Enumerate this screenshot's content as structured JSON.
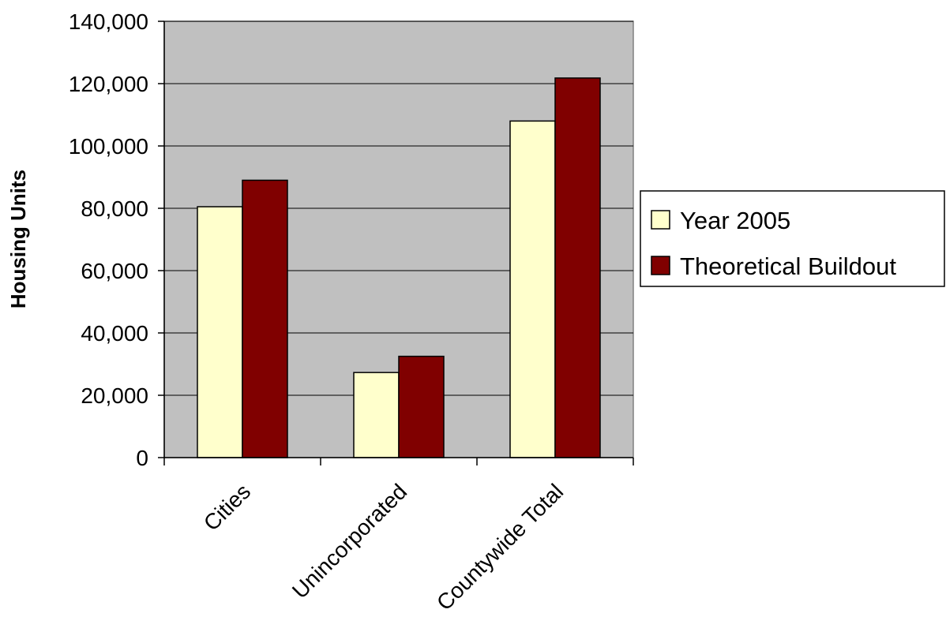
{
  "chart_data": {
    "type": "bar",
    "title": "",
    "xlabel": "",
    "ylabel": "Housing Units",
    "categories": [
      "Cities",
      "Unincorporated",
      "Countywide Total"
    ],
    "series": [
      {
        "name": "Year 2005",
        "values": [
          80500,
          27300,
          108000
        ],
        "color": "#ffffcc"
      },
      {
        "name": "Theoretical Buildout",
        "values": [
          89000,
          32500,
          121800
        ],
        "color": "#800000"
      }
    ],
    "ylim": [
      0,
      140000
    ],
    "yticks": [
      0,
      20000,
      40000,
      60000,
      80000,
      100000,
      120000,
      140000
    ],
    "ytick_labels": [
      "0",
      "20,000",
      "40,000",
      "60,000",
      "80,000",
      "100,000",
      "120,000",
      "140,000"
    ],
    "grid": true,
    "legend_position": "right",
    "plot_background": "#c0c0c0"
  }
}
